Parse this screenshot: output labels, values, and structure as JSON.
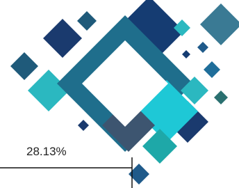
{
  "progress": {
    "label": "28.13%"
  }
}
